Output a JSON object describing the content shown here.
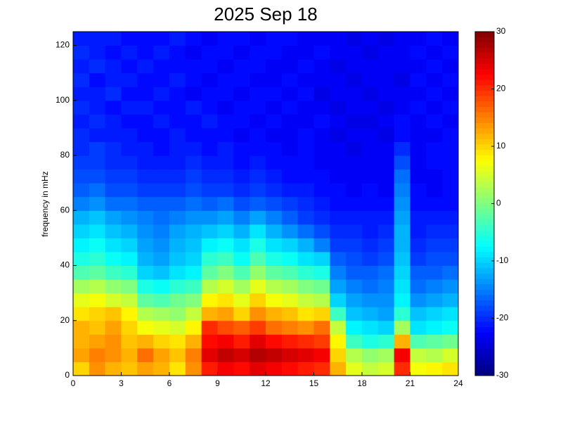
{
  "chart_data": {
    "type": "heatmap",
    "title": "2025 Sep 18",
    "ylabel": "frequency in mHz",
    "xlim": [
      0,
      24
    ],
    "xticks": [
      0,
      3,
      6,
      9,
      12,
      15,
      18,
      21,
      24
    ],
    "ylim": [
      0,
      125
    ],
    "yticks": [
      0,
      20,
      40,
      60,
      80,
      100,
      120
    ],
    "clim": [
      -30,
      30
    ],
    "cticks": [
      -30,
      -20,
      -10,
      0,
      10,
      20,
      30
    ],
    "colormap": "jet",
    "z": [
      [
        10,
        14,
        12,
        11,
        13,
        12,
        9,
        14,
        21,
        23,
        22,
        24,
        23,
        22,
        21,
        20,
        12,
        6,
        4,
        5,
        20,
        7,
        8,
        9
      ],
      [
        13,
        15,
        14,
        12,
        16,
        13,
        11,
        15,
        24,
        26,
        25,
        27,
        26,
        25,
        24,
        23,
        10,
        3,
        1,
        2,
        23,
        4,
        3,
        5
      ],
      [
        12,
        13,
        14,
        11,
        12,
        10,
        9,
        12,
        22,
        23,
        21,
        24,
        22,
        21,
        20,
        19,
        8,
        -4,
        -6,
        -5,
        12,
        -3,
        -2,
        -1
      ],
      [
        12,
        11,
        13,
        10,
        7,
        6,
        5,
        8,
        20,
        18,
        17,
        19,
        16,
        15,
        14,
        16,
        4,
        -8,
        -9,
        -10,
        2,
        -9,
        -8,
        -7
      ],
      [
        9,
        10,
        11,
        8,
        3,
        2,
        1,
        4,
        12,
        13,
        10,
        14,
        12,
        11,
        9,
        10,
        -4,
        -11,
        -12,
        -13,
        -5,
        -11,
        -10,
        -9
      ],
      [
        6,
        7,
        5,
        4,
        -2,
        -3,
        -1,
        0,
        8,
        9,
        6,
        10,
        7,
        6,
        4,
        3,
        -10,
        -13,
        -14,
        -14,
        -8,
        -14,
        -13,
        -12
      ],
      [
        2,
        3,
        1,
        0,
        -6,
        -7,
        -5,
        -4,
        3,
        5,
        2,
        6,
        3,
        2,
        0,
        -1,
        -13,
        -15,
        -16,
        -15,
        -9,
        -16,
        -15,
        -14
      ],
      [
        -3,
        -2,
        -4,
        -5,
        -10,
        -11,
        -9,
        -8,
        -2,
        0,
        -3,
        1,
        -2,
        -3,
        -5,
        -6,
        -15,
        -17,
        -17,
        -16,
        -10,
        -17,
        -17,
        -16
      ],
      [
        -6,
        -5,
        -7,
        -8,
        -12,
        -13,
        -11,
        -10,
        -5,
        -4,
        -7,
        -3,
        -6,
        -7,
        -9,
        -10,
        -17,
        -18,
        -19,
        -18,
        -11,
        -19,
        -18,
        -18
      ],
      [
        -8,
        -7,
        -9,
        -10,
        -13,
        -14,
        -12,
        -11,
        -8,
        -7,
        -9,
        -6,
        -9,
        -10,
        -12,
        -15,
        -19,
        -19,
        -20,
        -19,
        -12,
        -20,
        -19,
        -19
      ],
      [
        -10,
        -9,
        -11,
        -12,
        -14,
        -15,
        -13,
        -12,
        -11,
        -10,
        -12,
        -9,
        -12,
        -14,
        -16,
        -18,
        -20,
        -20,
        -21,
        -20,
        -12,
        -21,
        -20,
        -20
      ],
      [
        -12,
        -11,
        -13,
        -14,
        -15,
        -16,
        -15,
        -14,
        -14,
        -13,
        -15,
        -13,
        -15,
        -17,
        -19,
        -20,
        -21,
        -21,
        -21,
        -21,
        -13,
        -21,
        -21,
        -21
      ],
      [
        -15,
        -14,
        -16,
        -16,
        -17,
        -17,
        -17,
        -16,
        -17,
        -16,
        -18,
        -17,
        -18,
        -19,
        -20,
        -21,
        -22,
        -22,
        -22,
        -22,
        -14,
        -22,
        -22,
        -22
      ],
      [
        -17,
        -16,
        -18,
        -18,
        -19,
        -19,
        -19,
        -18,
        -19,
        -19,
        -20,
        -19,
        -20,
        -21,
        -21,
        -22,
        -22,
        -23,
        -22,
        -23,
        -15,
        -22,
        -23,
        -22
      ],
      [
        -18,
        -18,
        -19,
        -19,
        -20,
        -20,
        -20,
        -19,
        -20,
        -20,
        -21,
        -20,
        -21,
        -22,
        -22,
        -22,
        -23,
        -23,
        -23,
        -23,
        -16,
        -23,
        -23,
        -22
      ],
      [
        -19,
        -19,
        -20,
        -20,
        -21,
        -21,
        -21,
        -20,
        -21,
        -21,
        -22,
        -21,
        -22,
        -22,
        -22,
        -23,
        -23,
        -23,
        -23,
        -23,
        -18,
        -23,
        -22,
        -22
      ],
      [
        -20,
        -19,
        -20,
        -21,
        -21,
        -22,
        -21,
        -21,
        -22,
        -21,
        -22,
        -22,
        -22,
        -23,
        -22,
        -23,
        -23,
        -24,
        -23,
        -23,
        -20,
        -23,
        -22,
        -22
      ],
      [
        -20,
        -21,
        -21,
        -21,
        -22,
        -22,
        -21,
        -22,
        -22,
        -22,
        -23,
        -22,
        -23,
        -23,
        -22,
        -23,
        -24,
        -23,
        -23,
        -24,
        -22,
        -23,
        -23,
        -22
      ],
      [
        -21,
        -20,
        -21,
        -22,
        -22,
        -21,
        -22,
        -22,
        -21,
        -22,
        -22,
        -23,
        -22,
        -23,
        -23,
        -22,
        -23,
        -24,
        -24,
        -23,
        -22,
        -23,
        -22,
        -23
      ],
      [
        -20,
        -21,
        -22,
        -21,
        -21,
        -22,
        -22,
        -21,
        -22,
        -23,
        -22,
        -22,
        -23,
        -22,
        -23,
        -23,
        -24,
        -23,
        -23,
        -24,
        -23,
        -22,
        -23,
        -22
      ],
      [
        -21,
        -21,
        -20,
        -22,
        -22,
        -21,
        -22,
        -23,
        -22,
        -22,
        -23,
        -22,
        -22,
        -23,
        -22,
        -24,
        -23,
        -23,
        -24,
        -23,
        -23,
        -23,
        -22,
        -23
      ],
      [
        -20,
        -22,
        -21,
        -21,
        -22,
        -22,
        -21,
        -22,
        -23,
        -22,
        -22,
        -23,
        -23,
        -22,
        -23,
        -23,
        -23,
        -24,
        -23,
        -23,
        -24,
        -22,
        -23,
        -22
      ],
      [
        -21,
        -20,
        -21,
        -22,
        -21,
        -22,
        -22,
        -22,
        -22,
        -23,
        -22,
        -22,
        -23,
        -23,
        -22,
        -23,
        -24,
        -23,
        -23,
        -23,
        -23,
        -23,
        -22,
        -23
      ],
      [
        -20,
        -21,
        -22,
        -21,
        -22,
        -21,
        -22,
        -23,
        -22,
        -22,
        -23,
        -22,
        -22,
        -23,
        -23,
        -22,
        -23,
        -23,
        -24,
        -23,
        -23,
        -22,
        -23,
        -22
      ],
      [
        -21,
        -21,
        -21,
        -22,
        -22,
        -22,
        -21,
        -22,
        -23,
        -22,
        -22,
        -23,
        -22,
        -22,
        -23,
        -23,
        -23,
        -24,
        -23,
        -24,
        -23,
        -23,
        -22,
        -23
      ]
    ]
  }
}
